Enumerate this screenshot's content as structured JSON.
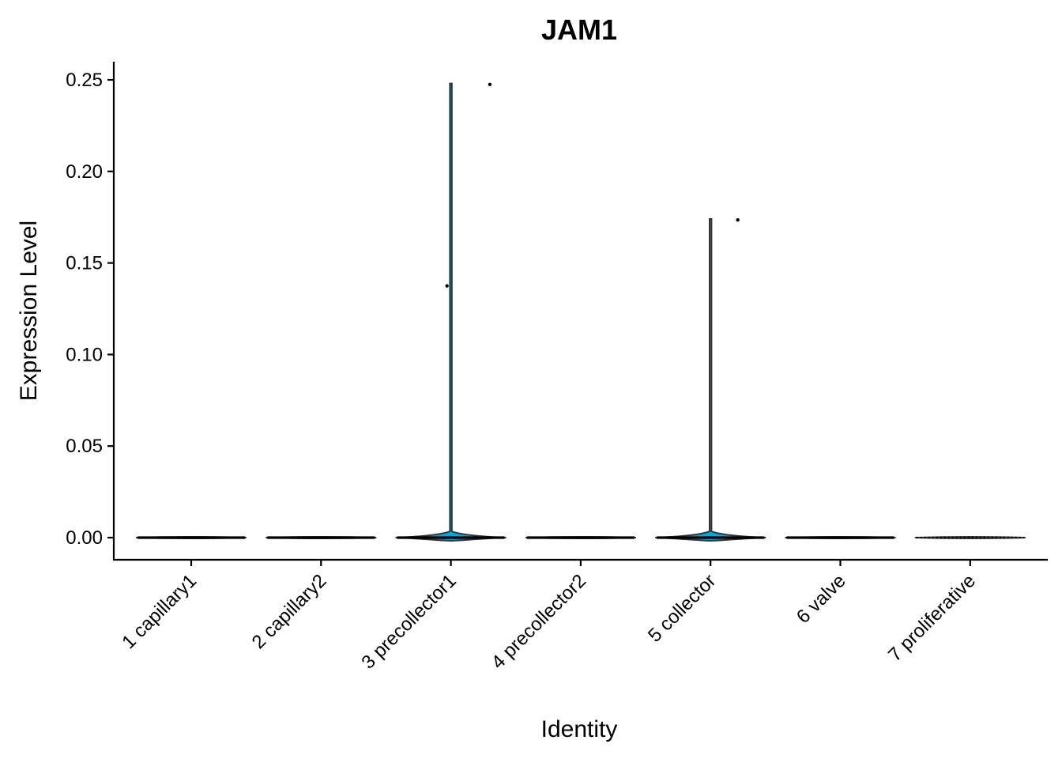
{
  "chart_data": {
    "type": "violin",
    "title": "JAM1",
    "xlabel": "Identity",
    "ylabel": "Expression Level",
    "ylim": [
      -0.012,
      0.26
    ],
    "yticks": [
      "0.00",
      "0.05",
      "0.10",
      "0.15",
      "0.20",
      "0.25"
    ],
    "yticks_values": [
      0,
      0.05,
      0.1,
      0.15,
      0.2,
      0.25
    ],
    "categories": [
      "1 capillary1",
      "2 capillary2",
      "3 precollector1",
      "4 precollector2",
      "5 collector",
      "6 valve",
      "7 proliferative"
    ],
    "fill_color": "#00A9E0",
    "outline_color": "#333333",
    "grid": false,
    "legend": "none",
    "violins": [
      {
        "category": "1 capillary1",
        "max": 0.0
      },
      {
        "category": "2 capillary2",
        "max": 0.0
      },
      {
        "category": "3 precollector1",
        "max": 0.248
      },
      {
        "category": "4 precollector2",
        "max": 0.0
      },
      {
        "category": "5 collector",
        "max": 0.174
      },
      {
        "category": "6 valve",
        "max": 0.0
      },
      {
        "category": "7 proliferative",
        "max": 0.0
      }
    ],
    "points": [
      {
        "category": "3 precollector1",
        "jitter": -0.03,
        "y": 0.1375
      },
      {
        "category": "3 precollector1",
        "jitter": 0.3,
        "y": 0.2475
      },
      {
        "category": "5 collector",
        "jitter": 0.21,
        "y": 0.1735
      }
    ]
  }
}
